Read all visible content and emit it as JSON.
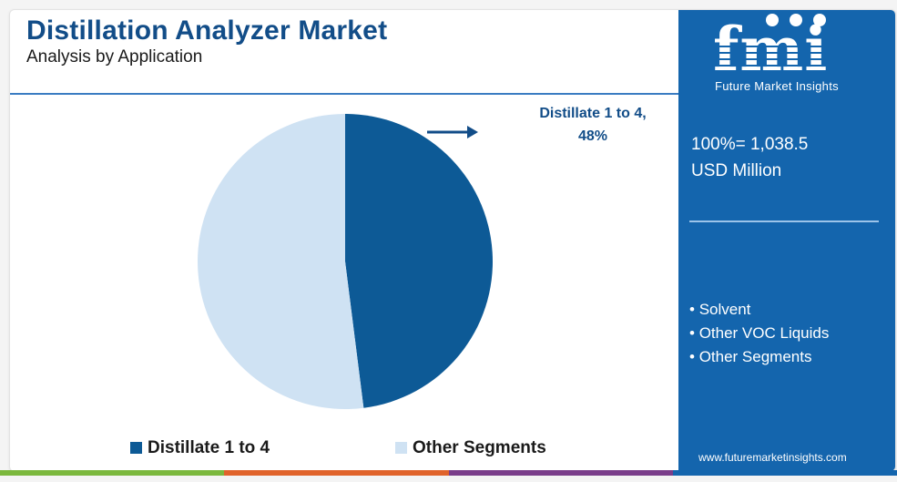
{
  "header": {
    "title": "Distillation Analyzer Market",
    "subtitle": "Analysis by Application"
  },
  "sidebar": {
    "logo_text": "fmi",
    "logo_subtitle": "Future Market Insights",
    "total_line1": "100%= 1,038.5",
    "total_line2": "USD Million",
    "segments": [
      "Solvent",
      "Other VOC Liquids",
      "Other Segments"
    ],
    "url": "www.futuremarketinsights.com"
  },
  "callout": {
    "line1": "Distillate 1 to 4,",
    "line2": "48%"
  },
  "colors": {
    "primary": "#124d88",
    "dark_slice": "#0d5a96",
    "light_slice": "#cfe2f3",
    "sidebar": "#1465ad",
    "bar": [
      "#7bb83d",
      "#e0632b",
      "#7a3d8a",
      "#1465ad"
    ]
  },
  "chart_data": {
    "type": "pie",
    "title": "Distillation Analyzer Market",
    "subtitle": "Analysis by Application",
    "total_label": "100%= 1,038.5 USD Million",
    "slices": [
      {
        "label": "Distillate 1 to 4",
        "value": 48,
        "color": "#0d5a96"
      },
      {
        "label": "Other Segments",
        "value": 52,
        "color": "#cfe2f3"
      }
    ],
    "legend_placement": "bottom"
  }
}
